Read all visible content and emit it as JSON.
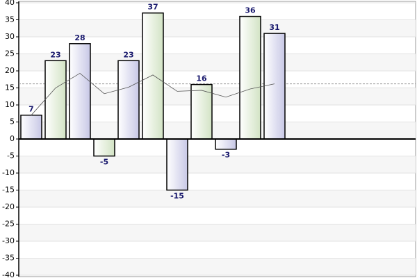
{
  "chart_data": {
    "type": "bar",
    "series": [
      {
        "values": [
          7,
          23,
          28,
          -5,
          23,
          37,
          -15,
          16,
          -3,
          36,
          31
        ],
        "colors": [
          "#d9d9ef",
          "#e0ebd6"
        ]
      },
      {
        "type": "line",
        "color": "#555555",
        "values": [
          7,
          15,
          19.3,
          13.3,
          15.2,
          18.8,
          14,
          14.3,
          12.3,
          14.7,
          16.2
        ]
      }
    ],
    "average": 16.2,
    "ylim": [
      -40,
      40
    ],
    "yticks": [
      -40,
      -35,
      -30,
      -25,
      -20,
      -15,
      -10,
      -5,
      0,
      5,
      10,
      15,
      20,
      25,
      30,
      35,
      40
    ],
    "grid": true
  }
}
